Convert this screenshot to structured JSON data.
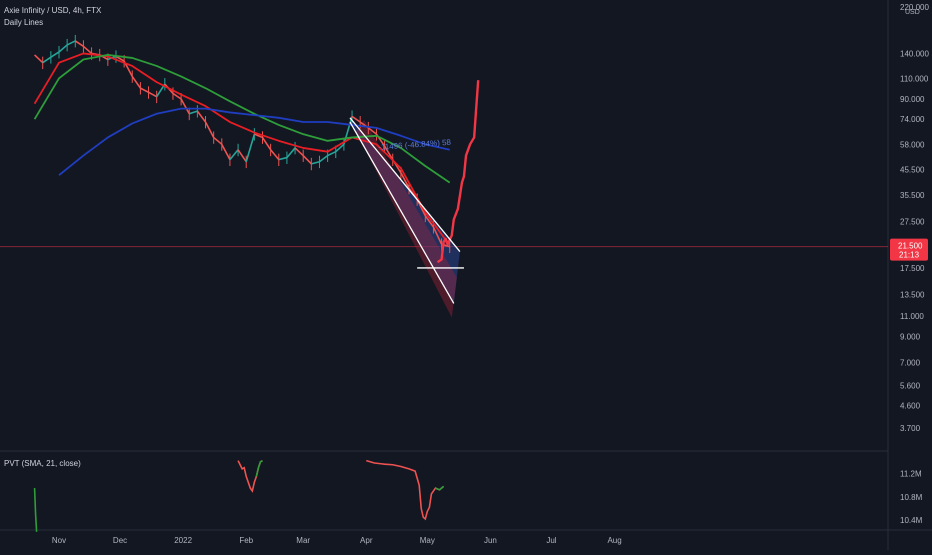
{
  "header": {
    "symbol_title": "Axie Infinity / USD, 4h, FTX",
    "study_label": "Daily Lines"
  },
  "currency_label": "USD",
  "price_scale": {
    "ticks": [
      "220.000",
      "140.000",
      "110.000",
      "90.000",
      "74.000",
      "58.000",
      "45.500",
      "35.500",
      "27.500",
      "21.500",
      "17.500",
      "13.500",
      "11.000",
      "9.000",
      "7.000",
      "5.600",
      "4.600",
      "3.700"
    ],
    "tick_values": [
      220,
      140,
      110,
      90,
      74,
      58,
      45.5,
      35.5,
      27.5,
      21.5,
      17.5,
      13.5,
      11,
      9,
      7,
      5.6,
      4.6,
      3.7
    ],
    "last_price_label": "21.500",
    "countdown_label": "21:13",
    "last_price_color": "#f23645"
  },
  "indicator": {
    "title": "PVT (SMA, 21, close)",
    "ticks": [
      "11.2M",
      "10.8M",
      "10.4M"
    ],
    "tick_values": [
      11.2,
      10.8,
      10.4
    ]
  },
  "time_axis": {
    "labels": [
      "Nov",
      "Dec",
      "2022",
      "Feb",
      "Mar",
      "Apr",
      "May",
      "Jun",
      "Jul",
      "Aug"
    ],
    "label_days": [
      0,
      30,
      61,
      92,
      120,
      151,
      181,
      212,
      242,
      273
    ]
  },
  "channel_annotation_text": "-11496 (-46.84%) 58",
  "colors": {
    "background": "#131722",
    "candle_up": "#26a69a",
    "candle_down": "#ef5350",
    "ma_fast": "#e91e25",
    "ma_mid": "#2e9e3a",
    "ma_slow": "#1f3ec0",
    "projection": "#f23645",
    "trendline": "#ffffff",
    "channel_fill_blue": "#2e4ea8",
    "channel_fill_red": "#a8243a"
  },
  "chart_data": {
    "type": "line",
    "title": "Axie Infinity / USD, 4h, FTX",
    "y_scale": "log",
    "ylim": [
      3.3,
      235
    ],
    "x_unit": "days since Nov 1, 2021",
    "series": [
      {
        "name": "AXS price",
        "x": [
          -12,
          -8,
          -4,
          0,
          4,
          8,
          12,
          16,
          20,
          24,
          28,
          32,
          36,
          40,
          44,
          48,
          52,
          56,
          60,
          64,
          68,
          72,
          76,
          80,
          84,
          88,
          92,
          96,
          100,
          104,
          108,
          112,
          116,
          120,
          124,
          128,
          132,
          136,
          140,
          144,
          148,
          152,
          156,
          160,
          164,
          168,
          172,
          176,
          180,
          184,
          188,
          192
        ],
        "values": [
          138,
          128,
          135,
          142,
          152,
          158,
          150,
          140,
          138,
          132,
          136,
          130,
          112,
          100,
          96,
          92,
          104,
          95,
          90,
          78,
          80,
          72,
          62,
          58,
          50,
          55,
          49,
          64,
          62,
          55,
          50,
          51,
          56,
          52,
          48,
          49,
          52,
          54,
          58,
          76,
          72,
          68,
          64,
          57,
          50,
          44,
          38,
          34,
          29,
          26,
          22,
          21.5
        ]
      },
      {
        "name": "MA fast",
        "x": [
          -12,
          0,
          12,
          24,
          36,
          48,
          60,
          72,
          84,
          96,
          108,
          120,
          132,
          144,
          156,
          168,
          180,
          190
        ],
        "values": [
          86,
          128,
          140,
          136,
          124,
          106,
          94,
          84,
          72,
          65,
          60,
          56,
          54,
          62,
          58,
          46,
          30,
          23
        ]
      },
      {
        "name": "MA mid",
        "x": [
          -12,
          0,
          12,
          24,
          36,
          48,
          60,
          72,
          84,
          96,
          108,
          120,
          132,
          144,
          156,
          168,
          180,
          192
        ],
        "values": [
          74,
          110,
          132,
          138,
          134,
          124,
          112,
          100,
          88,
          78,
          70,
          64,
          60,
          62,
          63,
          56,
          47,
          40
        ]
      },
      {
        "name": "MA slow",
        "x": [
          0,
          12,
          24,
          36,
          48,
          60,
          72,
          84,
          96,
          108,
          120,
          132,
          144,
          156,
          168,
          180,
          192
        ],
        "values": [
          43,
          52,
          62,
          71,
          78,
          82,
          82,
          79,
          77,
          75,
          72,
          72,
          70,
          68,
          63,
          58,
          55
        ]
      },
      {
        "name": "Projection",
        "x": [
          186,
          188,
          189,
          190,
          191,
          193,
          194,
          196,
          198,
          199,
          200,
          202,
          204,
          205,
          206
        ],
        "values": [
          18.5,
          19,
          22.5,
          23.2,
          22,
          24,
          28,
          31,
          40,
          42.5,
          52,
          58,
          62,
          82,
          108
        ]
      }
    ],
    "trendlines": [
      {
        "x": [
          143,
          197
        ],
        "values": [
          75,
          20.5
        ]
      },
      {
        "x": [
          143,
          194
        ],
        "values": [
          72,
          12.4
        ]
      },
      {
        "x": [
          176,
          199
        ],
        "values": [
          17.5,
          17.5
        ]
      }
    ],
    "indicator_series": [
      {
        "x": [
          -12,
          -11.5,
          -11
        ],
        "values": [
          10.95,
          10.5,
          10.2
        ],
        "color": "#2e9e3a"
      },
      {
        "x": [
          88,
          89,
          90,
          91,
          92,
          93,
          94,
          95,
          96,
          97,
          98,
          99,
          100
        ],
        "values": [
          11.42,
          11.35,
          11.28,
          11.3,
          11.15,
          11.05,
          10.95,
          10.9,
          11.05,
          11.15,
          11.3,
          11.4,
          11.42
        ],
        "color": "#ef5350"
      },
      {
        "x": [
          151,
          155,
          160,
          164,
          168,
          172,
          175,
          177,
          178,
          179,
          180,
          181,
          182,
          183,
          185,
          187,
          189
        ],
        "values": [
          11.42,
          11.38,
          11.36,
          11.35,
          11.32,
          11.28,
          11.24,
          11.0,
          10.6,
          10.45,
          10.42,
          10.55,
          10.62,
          10.85,
          10.95,
          10.92,
          10.98
        ],
        "color": "#ef5350"
      }
    ]
  }
}
